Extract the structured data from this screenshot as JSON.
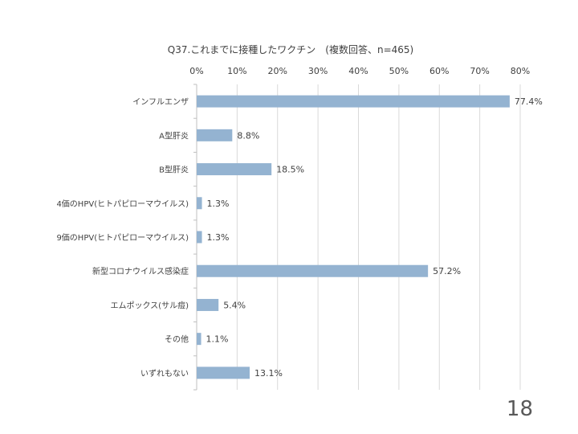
{
  "slide": {
    "page_number": "18"
  },
  "colors": {
    "bar": "#94b3d1",
    "grid": "#d9d9d9",
    "axis": "#bfbfbf",
    "text": "#404040"
  },
  "chart_data": {
    "type": "bar",
    "orientation": "horizontal",
    "title": "Q37.これまでに接種したワクチン　(複数回答、n=465)",
    "categories": [
      "インフルエンザ",
      "A型肝炎",
      "B型肝炎",
      "4価のHPV(ヒトパピローマウイルス)",
      "9価のHPV(ヒトパピローマウイルス)",
      "新型コロナウイルス感染症",
      "エムポックス(サル痘)",
      "その他",
      "いずれもない"
    ],
    "values": [
      77.4,
      8.8,
      18.5,
      1.3,
      1.3,
      57.2,
      5.4,
      1.1,
      13.1
    ],
    "data_labels": [
      "77.4%",
      "8.8%",
      "18.5%",
      "1.3%",
      "1.3%",
      "57.2%",
      "5.4%",
      "1.1%",
      "13.1%"
    ],
    "x_ticks": [
      "0%",
      "10%",
      "20%",
      "30%",
      "40%",
      "50%",
      "60%",
      "70%",
      "80%"
    ],
    "xlim": [
      0,
      80
    ],
    "axis_position": "top",
    "grid": true,
    "legend": "none"
  }
}
